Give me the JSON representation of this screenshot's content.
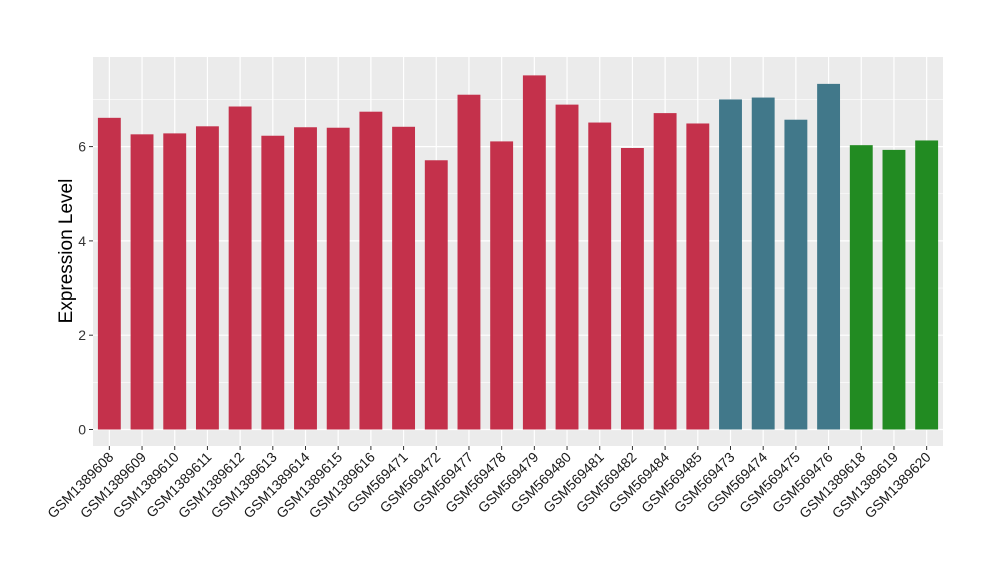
{
  "chart_data": {
    "type": "bar",
    "title": "",
    "xlabel": "",
    "ylabel": "Expression Level",
    "ylim": [
      -0.35,
      7.9
    ],
    "yticks": [
      0,
      2,
      4,
      6
    ],
    "grid": true,
    "categories": [
      "GSM1389608",
      "GSM1389609",
      "GSM1389610",
      "GSM1389611",
      "GSM1389612",
      "GSM1389613",
      "GSM1389614",
      "GSM1389615",
      "GSM1389616",
      "GSM569471",
      "GSM569472",
      "GSM569477",
      "GSM569478",
      "GSM569479",
      "GSM569480",
      "GSM569481",
      "GSM569482",
      "GSM569484",
      "GSM569485",
      "GSM569473",
      "GSM569474",
      "GSM569475",
      "GSM569476",
      "GSM1389618",
      "GSM1389619",
      "GSM1389620"
    ],
    "values": [
      6.61,
      6.26,
      6.28,
      6.43,
      6.85,
      6.23,
      6.41,
      6.4,
      6.74,
      6.42,
      5.71,
      7.1,
      6.11,
      7.51,
      6.89,
      6.51,
      5.97,
      6.71,
      6.49,
      7.0,
      7.04,
      6.57,
      7.33,
      6.03,
      5.93,
      6.13
    ],
    "groups": [
      0,
      0,
      0,
      0,
      0,
      0,
      0,
      0,
      0,
      0,
      0,
      0,
      0,
      0,
      0,
      0,
      0,
      0,
      0,
      1,
      1,
      1,
      1,
      2,
      2,
      2
    ],
    "group_colors": [
      "#C4314B",
      "#41788A",
      "#228B22"
    ]
  }
}
